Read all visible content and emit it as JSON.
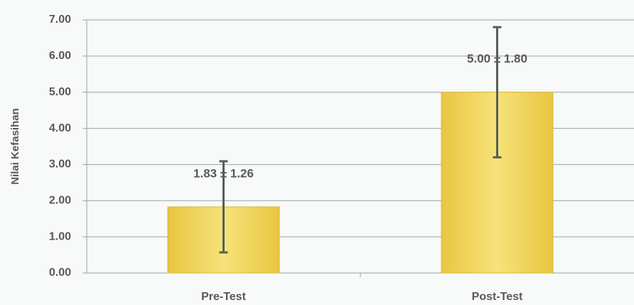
{
  "chart_data": {
    "type": "bar",
    "y_label": "Nilai Kefasihan",
    "categories": [
      "Pre-Test",
      "Post-Test"
    ],
    "values": [
      1.83,
      5.0
    ],
    "errors": [
      1.26,
      1.8
    ],
    "value_labels": [
      "1.83 ± 1.26",
      "5.00 ± 1.80"
    ],
    "color": "#f0d45a",
    "error_color": "#566056",
    "ylim": [
      0,
      7
    ],
    "yticks": [
      {
        "value": 0,
        "label": "0.00"
      },
      {
        "value": 1,
        "label": "1.00"
      },
      {
        "value": 2,
        "label": "2.00"
      },
      {
        "value": 3,
        "label": "3.00"
      },
      {
        "value": 4,
        "label": "4.00"
      },
      {
        "value": 5,
        "label": "5.00"
      },
      {
        "value": 6,
        "label": "6.00"
      },
      {
        "value": 7,
        "label": "7.00"
      }
    ],
    "grid": true
  }
}
